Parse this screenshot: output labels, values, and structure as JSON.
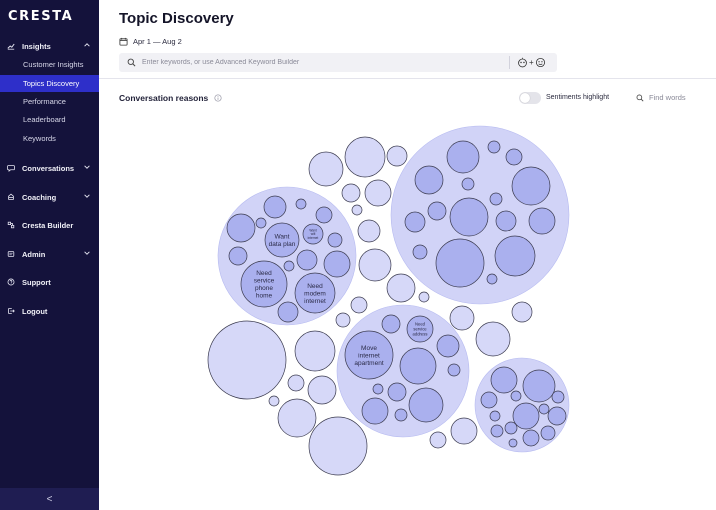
{
  "app": {
    "logo": "CRESTA"
  },
  "sidebar": {
    "sections": [
      {
        "label": "Insights",
        "icon": "chart-icon",
        "expanded": true
      },
      {
        "label": "Conversations",
        "icon": "chat-icon",
        "expanded": false
      },
      {
        "label": "Coaching",
        "icon": "coaching-icon",
        "expanded": false
      },
      {
        "label": "Cresta Builder",
        "icon": "builder-icon"
      },
      {
        "label": "Admin",
        "icon": "admin-icon",
        "expanded": false
      },
      {
        "label": "Support",
        "icon": "help-icon"
      },
      {
        "label": "Logout",
        "icon": "logout-icon"
      }
    ],
    "insights_items": [
      {
        "label": "Customer Insights"
      },
      {
        "label": "Topics Discovery",
        "active": true
      },
      {
        "label": "Performance"
      },
      {
        "label": "Leaderboard"
      },
      {
        "label": "Keywords"
      }
    ],
    "collapse_glyph": "<"
  },
  "header": {
    "title": "Topic Discovery",
    "date_range": "Apr 1 — Aug 2",
    "search_placeholder": "Enter keywords, or use Advanced Keyword Builder",
    "keyword_builder_plus": "+"
  },
  "panel": {
    "title": "Conversation reasons",
    "sentiments_toggle_label": "Sentiments highlight",
    "sentiments_on": false,
    "find_placeholder": "Find words"
  },
  "colors": {
    "sidebar_bg": "#14123b",
    "active_item": "#2e2fc9",
    "bubble_group": "#d1d3f7",
    "bubble_inner": "#aab0ee",
    "bubble_small": "#d6d8f8"
  },
  "bubble_labels": {
    "want_data_plan": "Want data plan",
    "want_wifi_internet": "Want wifi internet",
    "need_service_phone_home": "Need service phone home",
    "need_modem_internet": "Need modem internet",
    "need_service_address": "Need service address",
    "move_internet_apartment": "Move internet apartment"
  }
}
